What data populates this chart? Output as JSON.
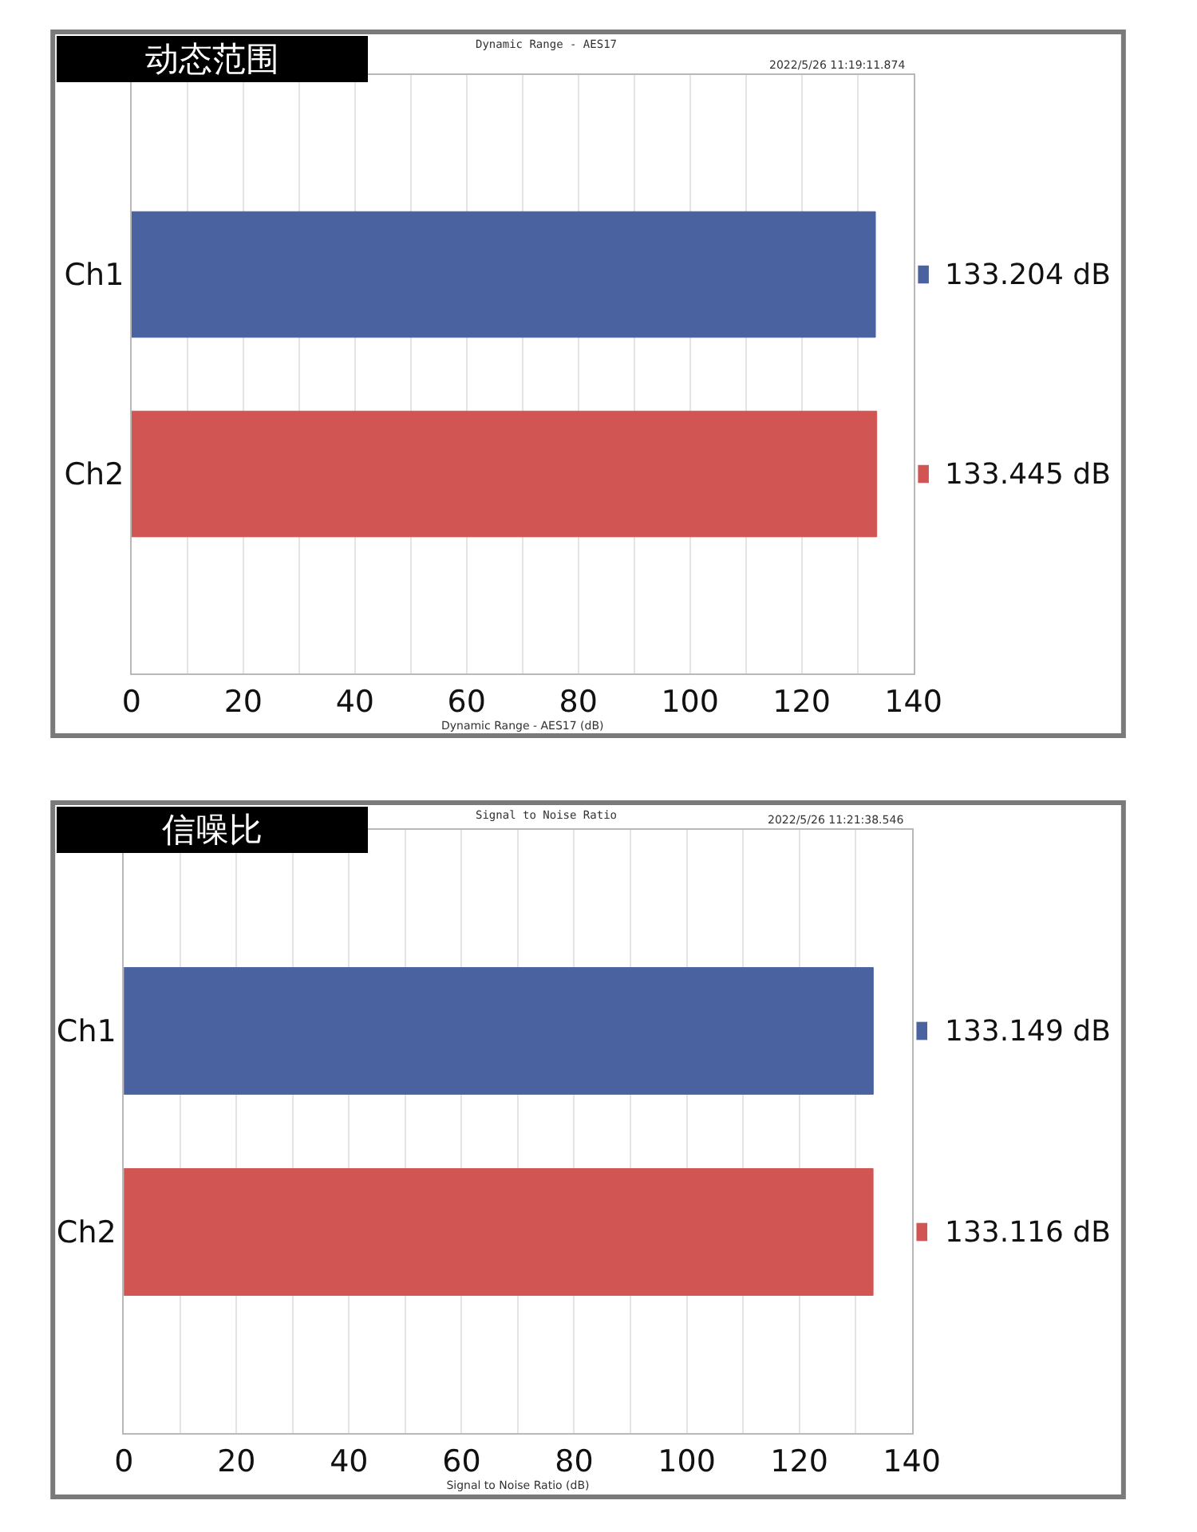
{
  "chart_data": [
    {
      "type": "bar",
      "orientation": "horizontal",
      "title": "动态范围",
      "subtitle": "Dynamic Range - AES17",
      "xlabel": "Dynamic Range - AES17 (dB)",
      "annotations": [
        "2022/5/26 11:19:11.874"
      ],
      "categories": [
        "Ch1",
        "Ch2"
      ],
      "values": [
        133.204,
        133.445
      ],
      "colors": [
        "#4a62a0",
        "#d05553"
      ],
      "value_labels": [
        "133.204 dB",
        "133.445 dB"
      ],
      "xlim": [
        0,
        140
      ],
      "xticks": [
        0,
        {
          "value": 10,
          "label": null
        },
        20,
        {
          "value": 30,
          "label": null
        },
        40,
        {
          "value": 50,
          "label": null
        },
        60,
        {
          "value": 70,
          "label": null
        },
        80,
        {
          "value": 90,
          "label": null
        },
        100,
        {
          "value": 110,
          "label": null
        },
        120,
        {
          "value": 130,
          "label": null
        },
        140
      ],
      "grid": "x",
      "legend": false
    },
    {
      "type": "bar",
      "orientation": "horizontal",
      "title": "信噪比",
      "subtitle": "Signal to Noise Ratio",
      "xlabel": "Signal to Noise Ratio (dB)",
      "annotations": [
        "2022/5/26 11:21:38.546"
      ],
      "categories": [
        "Ch1",
        "Ch2"
      ],
      "values": [
        133.149,
        133.116
      ],
      "colors": [
        "#4a62a0",
        "#d05553"
      ],
      "value_labels": [
        "133.149 dB",
        "133.116 dB"
      ],
      "xlim": [
        0,
        140
      ],
      "xticks": [
        0,
        {
          "value": 10,
          "label": null
        },
        20,
        {
          "value": 30,
          "label": null
        },
        40,
        {
          "value": 50,
          "label": null
        },
        60,
        {
          "value": 70,
          "label": null
        },
        80,
        {
          "value": 90,
          "label": null
        },
        100,
        {
          "value": 110,
          "label": null
        },
        120,
        {
          "value": 130,
          "label": null
        },
        140
      ],
      "grid": "x",
      "legend": false
    }
  ]
}
